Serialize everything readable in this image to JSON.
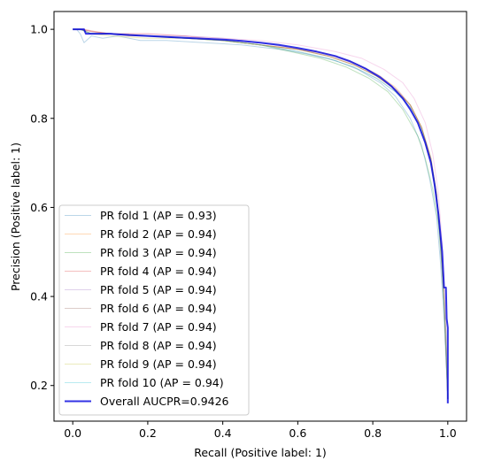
{
  "chart_data": {
    "type": "line",
    "title": "",
    "xlabel": "Recall (Positive label: 1)",
    "ylabel": "Precision (Positive label: 1)",
    "xlim": [
      -0.05,
      1.05
    ],
    "ylim": [
      0.12,
      1.04
    ],
    "xticks": [
      0.0,
      0.2,
      0.4,
      0.6,
      0.8,
      1.0
    ],
    "xtick_labels": [
      "0.0",
      "0.2",
      "0.4",
      "0.6",
      "0.8",
      "1.0"
    ],
    "yticks": [
      0.2,
      0.4,
      0.6,
      0.8,
      1.0
    ],
    "ytick_labels": [
      "0.2",
      "0.4",
      "0.6",
      "0.8",
      "1.0"
    ],
    "grid": false,
    "legend_position": "lower-left",
    "series": [
      {
        "name": "PR fold 1 (AP = 0.93)",
        "color": "#1f77b4",
        "role": "fold",
        "x": [
          0.0,
          0.01,
          0.02,
          0.03,
          0.05,
          0.08,
          0.12,
          0.18,
          0.25,
          0.35,
          0.45,
          0.55,
          0.62,
          0.7,
          0.76,
          0.82,
          0.86,
          0.9,
          0.93,
          0.95,
          0.97,
          0.98,
          0.99,
          1.0
        ],
        "y": [
          1.0,
          1.0,
          0.99,
          0.97,
          0.985,
          0.98,
          0.985,
          0.975,
          0.975,
          0.97,
          0.965,
          0.955,
          0.945,
          0.93,
          0.91,
          0.88,
          0.85,
          0.8,
          0.74,
          0.67,
          0.58,
          0.48,
          0.35,
          0.17
        ]
      },
      {
        "name": "PR fold 2 (AP = 0.94)",
        "color": "#ff7f0e",
        "role": "fold",
        "x": [
          0.0,
          0.02,
          0.05,
          0.1,
          0.15,
          0.2,
          0.3,
          0.4,
          0.5,
          0.6,
          0.68,
          0.75,
          0.81,
          0.86,
          0.9,
          0.93,
          0.95,
          0.97,
          0.98,
          0.99,
          1.0
        ],
        "y": [
          1.0,
          1.0,
          0.995,
          0.99,
          0.985,
          0.985,
          0.98,
          0.975,
          0.965,
          0.955,
          0.945,
          0.925,
          0.9,
          0.87,
          0.83,
          0.78,
          0.72,
          0.63,
          0.53,
          0.4,
          0.18
        ]
      },
      {
        "name": "PR fold 3 (AP = 0.94)",
        "color": "#2ca02c",
        "role": "fold",
        "x": [
          0.0,
          0.02,
          0.05,
          0.1,
          0.2,
          0.3,
          0.4,
          0.5,
          0.58,
          0.66,
          0.73,
          0.79,
          0.84,
          0.88,
          0.92,
          0.94,
          0.96,
          0.975,
          0.985,
          0.995,
          1.0
        ],
        "y": [
          1.0,
          1.0,
          0.99,
          0.99,
          0.985,
          0.98,
          0.975,
          0.965,
          0.95,
          0.935,
          0.915,
          0.89,
          0.86,
          0.82,
          0.76,
          0.71,
          0.64,
          0.56,
          0.46,
          0.32,
          0.17
        ]
      },
      {
        "name": "PR fold 4 (AP = 0.94)",
        "color": "#d62728",
        "role": "fold",
        "x": [
          0.0,
          0.03,
          0.06,
          0.1,
          0.2,
          0.3,
          0.4,
          0.5,
          0.6,
          0.68,
          0.75,
          0.81,
          0.86,
          0.9,
          0.93,
          0.955,
          0.97,
          0.98,
          0.99,
          1.0
        ],
        "y": [
          1.0,
          1.0,
          0.995,
          0.99,
          0.99,
          0.985,
          0.975,
          0.965,
          0.955,
          0.94,
          0.92,
          0.895,
          0.865,
          0.83,
          0.78,
          0.71,
          0.63,
          0.53,
          0.39,
          0.17
        ]
      },
      {
        "name": "PR fold 5 (AP = 0.94)",
        "color": "#9467bd",
        "role": "fold",
        "x": [
          0.0,
          0.02,
          0.05,
          0.1,
          0.2,
          0.3,
          0.4,
          0.5,
          0.6,
          0.69,
          0.76,
          0.82,
          0.87,
          0.9,
          0.93,
          0.955,
          0.97,
          0.98,
          0.99,
          1.0
        ],
        "y": [
          1.0,
          1.0,
          0.99,
          0.99,
          0.985,
          0.985,
          0.98,
          0.97,
          0.955,
          0.94,
          0.92,
          0.895,
          0.86,
          0.83,
          0.78,
          0.71,
          0.63,
          0.53,
          0.39,
          0.17
        ]
      },
      {
        "name": "PR fold 6 (AP = 0.94)",
        "color": "#8c564b",
        "role": "fold",
        "x": [
          0.0,
          0.02,
          0.05,
          0.1,
          0.2,
          0.3,
          0.4,
          0.5,
          0.6,
          0.68,
          0.75,
          0.81,
          0.86,
          0.9,
          0.93,
          0.955,
          0.97,
          0.98,
          0.99,
          1.0
        ],
        "y": [
          1.0,
          1.0,
          0.995,
          0.99,
          0.985,
          0.98,
          0.975,
          0.965,
          0.955,
          0.94,
          0.92,
          0.895,
          0.865,
          0.83,
          0.78,
          0.71,
          0.63,
          0.53,
          0.39,
          0.17
        ]
      },
      {
        "name": "PR fold 7 (AP = 0.94)",
        "color": "#e377c2",
        "role": "fold",
        "x": [
          0.0,
          0.02,
          0.05,
          0.1,
          0.2,
          0.3,
          0.4,
          0.5,
          0.6,
          0.7,
          0.77,
          0.83,
          0.88,
          0.91,
          0.94,
          0.96,
          0.975,
          0.985,
          0.993,
          1.0
        ],
        "y": [
          1.0,
          1.0,
          0.995,
          0.99,
          0.99,
          0.985,
          0.98,
          0.975,
          0.965,
          0.95,
          0.935,
          0.91,
          0.88,
          0.845,
          0.79,
          0.72,
          0.63,
          0.52,
          0.38,
          0.17
        ]
      },
      {
        "name": "PR fold 8 (AP = 0.94)",
        "color": "#7f7f7f",
        "role": "fold",
        "x": [
          0.0,
          0.02,
          0.05,
          0.1,
          0.2,
          0.3,
          0.4,
          0.5,
          0.6,
          0.68,
          0.75,
          0.81,
          0.86,
          0.9,
          0.93,
          0.955,
          0.97,
          0.98,
          0.99,
          1.0
        ],
        "y": [
          1.0,
          1.0,
          0.99,
          0.99,
          0.985,
          0.98,
          0.975,
          0.965,
          0.95,
          0.935,
          0.915,
          0.89,
          0.86,
          0.825,
          0.77,
          0.7,
          0.62,
          0.52,
          0.38,
          0.17
        ]
      },
      {
        "name": "PR fold 9 (AP = 0.94)",
        "color": "#bcbd22",
        "role": "fold",
        "x": [
          0.0,
          0.02,
          0.05,
          0.1,
          0.2,
          0.3,
          0.4,
          0.5,
          0.6,
          0.68,
          0.75,
          0.81,
          0.86,
          0.9,
          0.93,
          0.955,
          0.97,
          0.98,
          0.99,
          1.0
        ],
        "y": [
          1.0,
          1.0,
          0.99,
          0.985,
          0.98,
          0.98,
          0.975,
          0.965,
          0.955,
          0.94,
          0.92,
          0.895,
          0.865,
          0.83,
          0.78,
          0.71,
          0.63,
          0.53,
          0.39,
          0.17
        ]
      },
      {
        "name": "PR fold 10 (AP = 0.94)",
        "color": "#17becf",
        "role": "fold",
        "x": [
          0.0,
          0.02,
          0.05,
          0.1,
          0.2,
          0.3,
          0.4,
          0.5,
          0.6,
          0.68,
          0.75,
          0.81,
          0.86,
          0.9,
          0.93,
          0.955,
          0.97,
          0.98,
          0.99,
          1.0
        ],
        "y": [
          1.0,
          1.0,
          0.99,
          0.99,
          0.985,
          0.98,
          0.975,
          0.965,
          0.95,
          0.935,
          0.915,
          0.89,
          0.86,
          0.825,
          0.775,
          0.705,
          0.625,
          0.525,
          0.385,
          0.17
        ]
      },
      {
        "name": "Overall AUCPR=0.9426",
        "color": "#0000dd",
        "role": "overall",
        "x": [
          0.0,
          0.03,
          0.035,
          0.06,
          0.1,
          0.15,
          0.2,
          0.25,
          0.3,
          0.35,
          0.4,
          0.45,
          0.5,
          0.55,
          0.6,
          0.65,
          0.7,
          0.74,
          0.78,
          0.82,
          0.85,
          0.88,
          0.9,
          0.92,
          0.94,
          0.955,
          0.965,
          0.975,
          0.985,
          0.99,
          0.995,
          0.997,
          1.0,
          1.0
        ],
        "y": [
          1.0,
          1.0,
          0.99,
          0.99,
          0.99,
          0.987,
          0.985,
          0.983,
          0.981,
          0.979,
          0.977,
          0.974,
          0.97,
          0.965,
          0.958,
          0.95,
          0.94,
          0.928,
          0.912,
          0.892,
          0.872,
          0.845,
          0.82,
          0.79,
          0.745,
          0.7,
          0.65,
          0.585,
          0.5,
          0.42,
          0.42,
          0.35,
          0.33,
          0.16
        ]
      }
    ]
  }
}
